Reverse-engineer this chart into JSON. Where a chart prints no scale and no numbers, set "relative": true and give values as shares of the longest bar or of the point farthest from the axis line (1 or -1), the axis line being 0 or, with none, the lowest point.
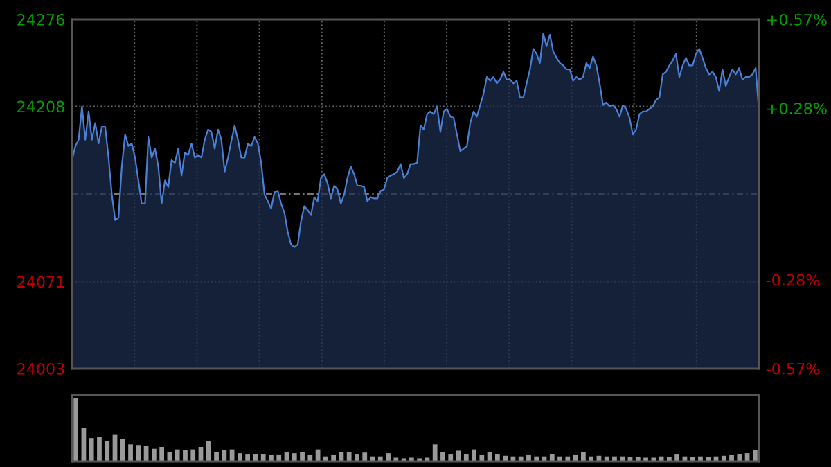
{
  "chart_data": [
    {
      "type": "area",
      "categories": [
        null,
        null,
        null,
        null,
        null,
        null,
        null,
        null,
        null,
        null,
        null,
        null,
        null,
        null,
        null,
        null,
        null,
        null,
        null,
        null,
        null,
        null,
        null,
        null,
        null,
        null,
        null,
        null,
        null,
        null,
        null,
        null,
        null,
        null,
        null,
        null,
        null,
        null,
        null,
        null,
        null,
        null,
        null,
        null,
        null,
        null,
        null,
        null,
        null,
        null,
        null,
        null,
        null,
        null,
        null,
        null,
        null,
        null,
        null,
        null,
        null,
        null,
        null,
        null,
        null,
        null,
        null,
        null,
        null,
        null,
        null,
        null,
        null,
        null,
        null,
        null,
        null,
        null,
        null,
        null,
        null,
        null,
        null,
        null,
        null,
        null,
        null,
        null,
        null,
        null,
        null,
        null,
        null,
        null,
        null,
        null,
        null,
        null,
        null,
        null,
        null,
        null,
        null,
        null,
        null,
        null,
        null,
        null,
        null,
        null,
        null,
        null,
        null,
        null,
        null,
        null,
        null,
        null,
        null,
        null,
        null,
        null,
        null,
        null,
        null,
        null,
        null,
        null,
        null,
        null,
        null,
        null,
        null,
        null,
        null,
        null,
        null,
        null,
        null,
        null,
        null,
        null,
        null,
        null,
        null,
        null,
        null,
        null,
        null,
        null,
        null,
        null,
        null,
        null,
        null,
        null,
        null,
        null,
        null,
        null,
        null,
        null,
        null,
        null,
        null,
        null,
        null,
        null,
        null,
        null,
        null,
        null,
        null,
        null,
        null,
        null,
        null,
        null,
        null,
        null,
        null,
        null,
        null,
        null,
        null,
        null,
        null,
        null,
        null,
        null,
        null,
        null,
        null,
        null,
        null,
        null,
        null,
        null,
        null,
        null,
        null,
        null,
        null,
        null,
        null,
        null,
        null,
        null
      ],
      "series": [
        {
          "color": "#4a7fd4",
          "values": [
            24166,
            24177,
            24182,
            24208,
            24182,
            24204,
            24182,
            24195,
            24179,
            24192,
            24192,
            24168,
            24139,
            24119,
            24121,
            24161,
            24186,
            24177,
            24179,
            24168,
            24150,
            24132,
            24132,
            24184,
            24168,
            24175,
            24161,
            24132,
            24150,
            24145,
            24166,
            24164,
            24175,
            24154,
            24172,
            24170,
            24179,
            24168,
            24170,
            24168,
            24182,
            24190,
            24188,
            24175,
            24190,
            24182,
            24157,
            24168,
            24181,
            24193,
            24182,
            24168,
            24168,
            24179,
            24177,
            24184,
            24179,
            24164,
            24139,
            24134,
            24128,
            24141,
            24142,
            24132,
            24125,
            24110,
            24100,
            24098,
            24100,
            24118,
            24130,
            24127,
            24123,
            24137,
            24134,
            24152,
            24155,
            24148,
            24136,
            24146,
            24143,
            24132,
            24139,
            24152,
            24161,
            24155,
            24146,
            24146,
            24145,
            24134,
            24137,
            24136,
            24136,
            24142,
            24143,
            24152,
            24154,
            24155,
            24157,
            24163,
            24152,
            24155,
            24163,
            24163,
            24164,
            24193,
            24190,
            24202,
            24204,
            24202,
            24208,
            24188,
            24204,
            24206,
            24200,
            24199,
            24186,
            24173,
            24175,
            24177,
            24195,
            24204,
            24200,
            24209,
            24218,
            24231,
            24228,
            24231,
            24226,
            24229,
            24235,
            24229,
            24229,
            24226,
            24228,
            24215,
            24215,
            24226,
            24237,
            24253,
            24249,
            24242,
            24265,
            24255,
            24264,
            24251,
            24246,
            24242,
            24240,
            24237,
            24237,
            24228,
            24231,
            24229,
            24231,
            24242,
            24238,
            24247,
            24240,
            24226,
            24209,
            24211,
            24208,
            24209,
            24206,
            24200,
            24209,
            24206,
            24199,
            24186,
            24190,
            24202,
            24204,
            24204,
            24206,
            24208,
            24213,
            24215,
            24233,
            24235,
            24240,
            24244,
            24249,
            24231,
            24240,
            24246,
            24240,
            24240,
            24249,
            24253,
            24246,
            24238,
            24233,
            24235,
            24231,
            24220,
            24237,
            24224,
            24231,
            24237,
            24233,
            24238,
            24229,
            24231,
            24231,
            24233,
            24238,
            24204
          ]
        }
      ],
      "ylim": [
        24003,
        24276
      ],
      "yticks": [
        24003,
        24071,
        24208,
        24276
      ],
      "y2lim": [
        -0.57,
        0.57
      ],
      "y2ticks": [
        {
          "value": -0.57,
          "label": "-0.57%"
        },
        {
          "value": -0.28,
          "label": "-0.28%"
        },
        {
          "value": 0.28,
          "label": "+0.28%"
        },
        {
          "value": 0.57,
          "label": "+0.57%"
        }
      ],
      "ref_lines": [
        {
          "axis": "y",
          "value": 24139.5,
          "color": "#777777",
          "line_style": "dashed"
        }
      ],
      "grid": true,
      "tick_labels": "y"
    },
    {
      "type": "bar",
      "relative": true,
      "color": "#9a9a9a",
      "categories": [
        null,
        null,
        null,
        null,
        null,
        null,
        null,
        null,
        null,
        null,
        null,
        null,
        null,
        null,
        null,
        null,
        null,
        null,
        null,
        null,
        null,
        null,
        null,
        null,
        null,
        null,
        null,
        null,
        null,
        null,
        null,
        null,
        null,
        null,
        null,
        null,
        null,
        null,
        null,
        null,
        null,
        null,
        null,
        null,
        null,
        null,
        null,
        null,
        null,
        null,
        null,
        null,
        null,
        null,
        null,
        null,
        null,
        null,
        null,
        null,
        null,
        null,
        null,
        null,
        null,
        null,
        null,
        null,
        null,
        null,
        null,
        null,
        null,
        null,
        null,
        null,
        null,
        null,
        null,
        null,
        null,
        null,
        null,
        null,
        null,
        null,
        null,
        null
      ],
      "values": [
        1.0,
        0.53,
        0.37,
        0.39,
        0.32,
        0.42,
        0.35,
        0.27,
        0.26,
        0.25,
        0.2,
        0.23,
        0.15,
        0.19,
        0.18,
        0.19,
        0.23,
        0.32,
        0.15,
        0.18,
        0.19,
        0.13,
        0.12,
        0.12,
        0.12,
        0.11,
        0.11,
        0.15,
        0.13,
        0.15,
        0.11,
        0.19,
        0.08,
        0.11,
        0.15,
        0.15,
        0.12,
        0.14,
        0.08,
        0.08,
        0.13,
        0.06,
        0.05,
        0.06,
        0.05,
        0.06,
        0.27,
        0.15,
        0.12,
        0.17,
        0.12,
        0.19,
        0.11,
        0.15,
        0.12,
        0.09,
        0.08,
        0.08,
        0.11,
        0.08,
        0.08,
        0.12,
        0.08,
        0.08,
        0.11,
        0.15,
        0.08,
        0.09,
        0.08,
        0.08,
        0.08,
        0.07,
        0.07,
        0.06,
        0.06,
        0.08,
        0.07,
        0.12,
        0.08,
        0.07,
        0.08,
        0.07,
        0.08,
        0.09,
        0.11,
        0.12,
        0.13,
        0.18
      ],
      "tick_labels": false
    }
  ]
}
